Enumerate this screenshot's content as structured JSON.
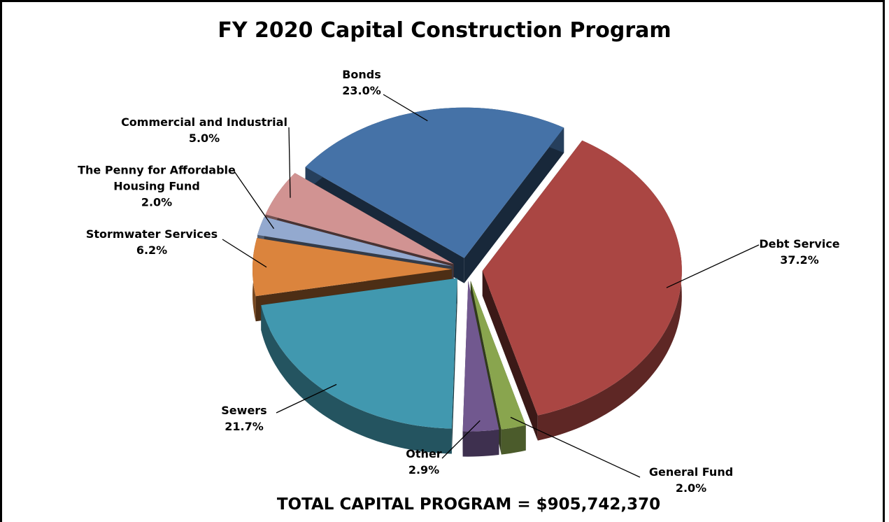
{
  "chart_data": {
    "type": "pie",
    "title": "FY 2020 Capital Construction Program",
    "annotation": "TOTAL CAPITAL PROGRAM = $905,742,370",
    "categories": [
      "Bonds",
      "Debt Service",
      "General Fund",
      "Other",
      "Sewers",
      "Stormwater Services",
      "The Penny for Affordable Housing Fund",
      "Commercial and Industrial"
    ],
    "values": [
      23.0,
      37.2,
      2.0,
      2.9,
      21.7,
      6.2,
      2.0,
      5.0
    ],
    "value_labels": [
      "23.0%",
      "37.2%",
      "2.0%",
      "2.9%",
      "21.7%",
      "6.2%",
      "2.0%",
      "5.0%"
    ],
    "colors": [
      "#4572a7",
      "#aa4643",
      "#89a54e",
      "#71588f",
      "#4198af",
      "#db843d",
      "#93a9cf",
      "#d19392"
    ]
  }
}
